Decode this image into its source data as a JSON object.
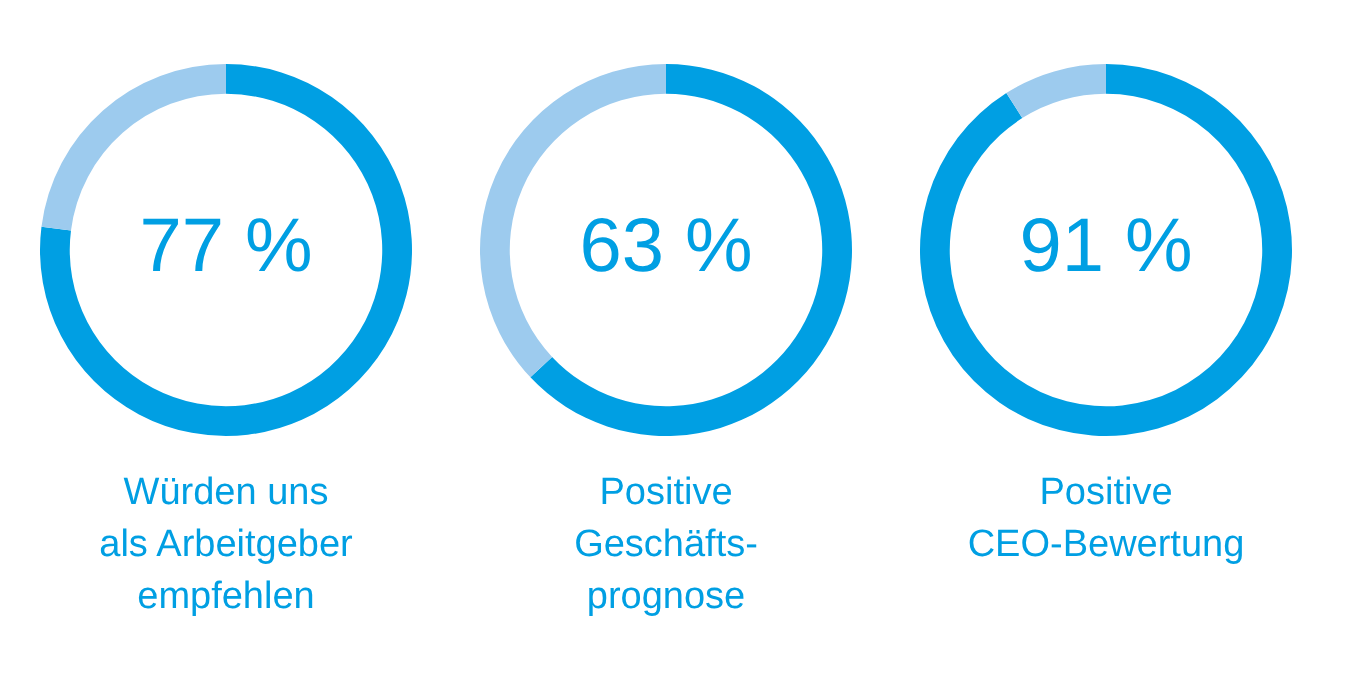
{
  "chart_data": [
    {
      "type": "donut",
      "title": "Würden uns\nals Arbeitgeber\nempfehlen",
      "categories": [
        null,
        null
      ],
      "values": [
        77,
        23
      ],
      "colors": [
        "#009fe3",
        "#9dcbee"
      ],
      "value_labels": [
        "77 %",
        null
      ],
      "legend": false
    },
    {
      "type": "donut",
      "title": "Positive\nGeschäfts-\nprognose",
      "categories": [
        null,
        null
      ],
      "values": [
        63,
        37
      ],
      "colors": [
        "#009fe3",
        "#9dcbee"
      ],
      "value_labels": [
        "63 %",
        null
      ],
      "legend": false
    },
    {
      "type": "donut",
      "title": "Positive\nCEO-Bewertung",
      "categories": [
        null,
        null
      ],
      "values": [
        91,
        9
      ],
      "colors": [
        "#009fe3",
        "#9dcbee"
      ],
      "value_labels": [
        "91 %",
        null
      ],
      "legend": false
    }
  ]
}
